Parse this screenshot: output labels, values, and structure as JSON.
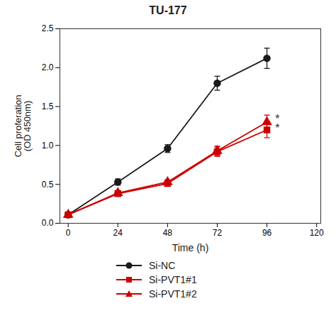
{
  "chart_data": {
    "type": "line",
    "title": "TU-177",
    "xlabel": "Time (h)",
    "ylabel": "Cell proferation\n(OD 450nm)",
    "x": [
      0,
      24,
      48,
      72,
      96
    ],
    "series": [
      {
        "name": "Si-NC",
        "color": "#1a1a1a",
        "marker": "circle",
        "values": [
          0.11,
          0.53,
          0.96,
          1.8,
          2.12
        ],
        "errors": [
          0.02,
          0.04,
          0.05,
          0.09,
          0.13
        ]
      },
      {
        "name": "Si-PVT1#1",
        "color": "#cc0000",
        "marker": "square",
        "values": [
          0.11,
          0.38,
          0.51,
          0.92,
          1.2
        ],
        "errors": [
          0.02,
          0.03,
          0.03,
          0.06,
          0.1
        ]
      },
      {
        "name": "Si-PVT1#2",
        "color": "#cc0000",
        "marker": "triangle",
        "values": [
          0.11,
          0.39,
          0.53,
          0.93,
          1.3
        ],
        "errors": [
          0.02,
          0.03,
          0.03,
          0.06,
          0.09
        ]
      }
    ],
    "xlim": [
      -4,
      122
    ],
    "ylim": [
      0.0,
      2.5
    ],
    "xticks": [
      0,
      24,
      48,
      72,
      96,
      120
    ],
    "yticks": [
      {
        "value": 0,
        "label": "0.0"
      },
      0.5,
      {
        "value": 1,
        "label": "1.0"
      },
      1.5,
      {
        "value": 2,
        "label": "2.0"
      },
      2.5
    ],
    "annotations": [
      {
        "text": "*",
        "x": 100,
        "y": 1.335
      },
      {
        "text": "*",
        "x": 100,
        "y": 1.215
      }
    ],
    "grid": false,
    "legend": "bottom"
  }
}
